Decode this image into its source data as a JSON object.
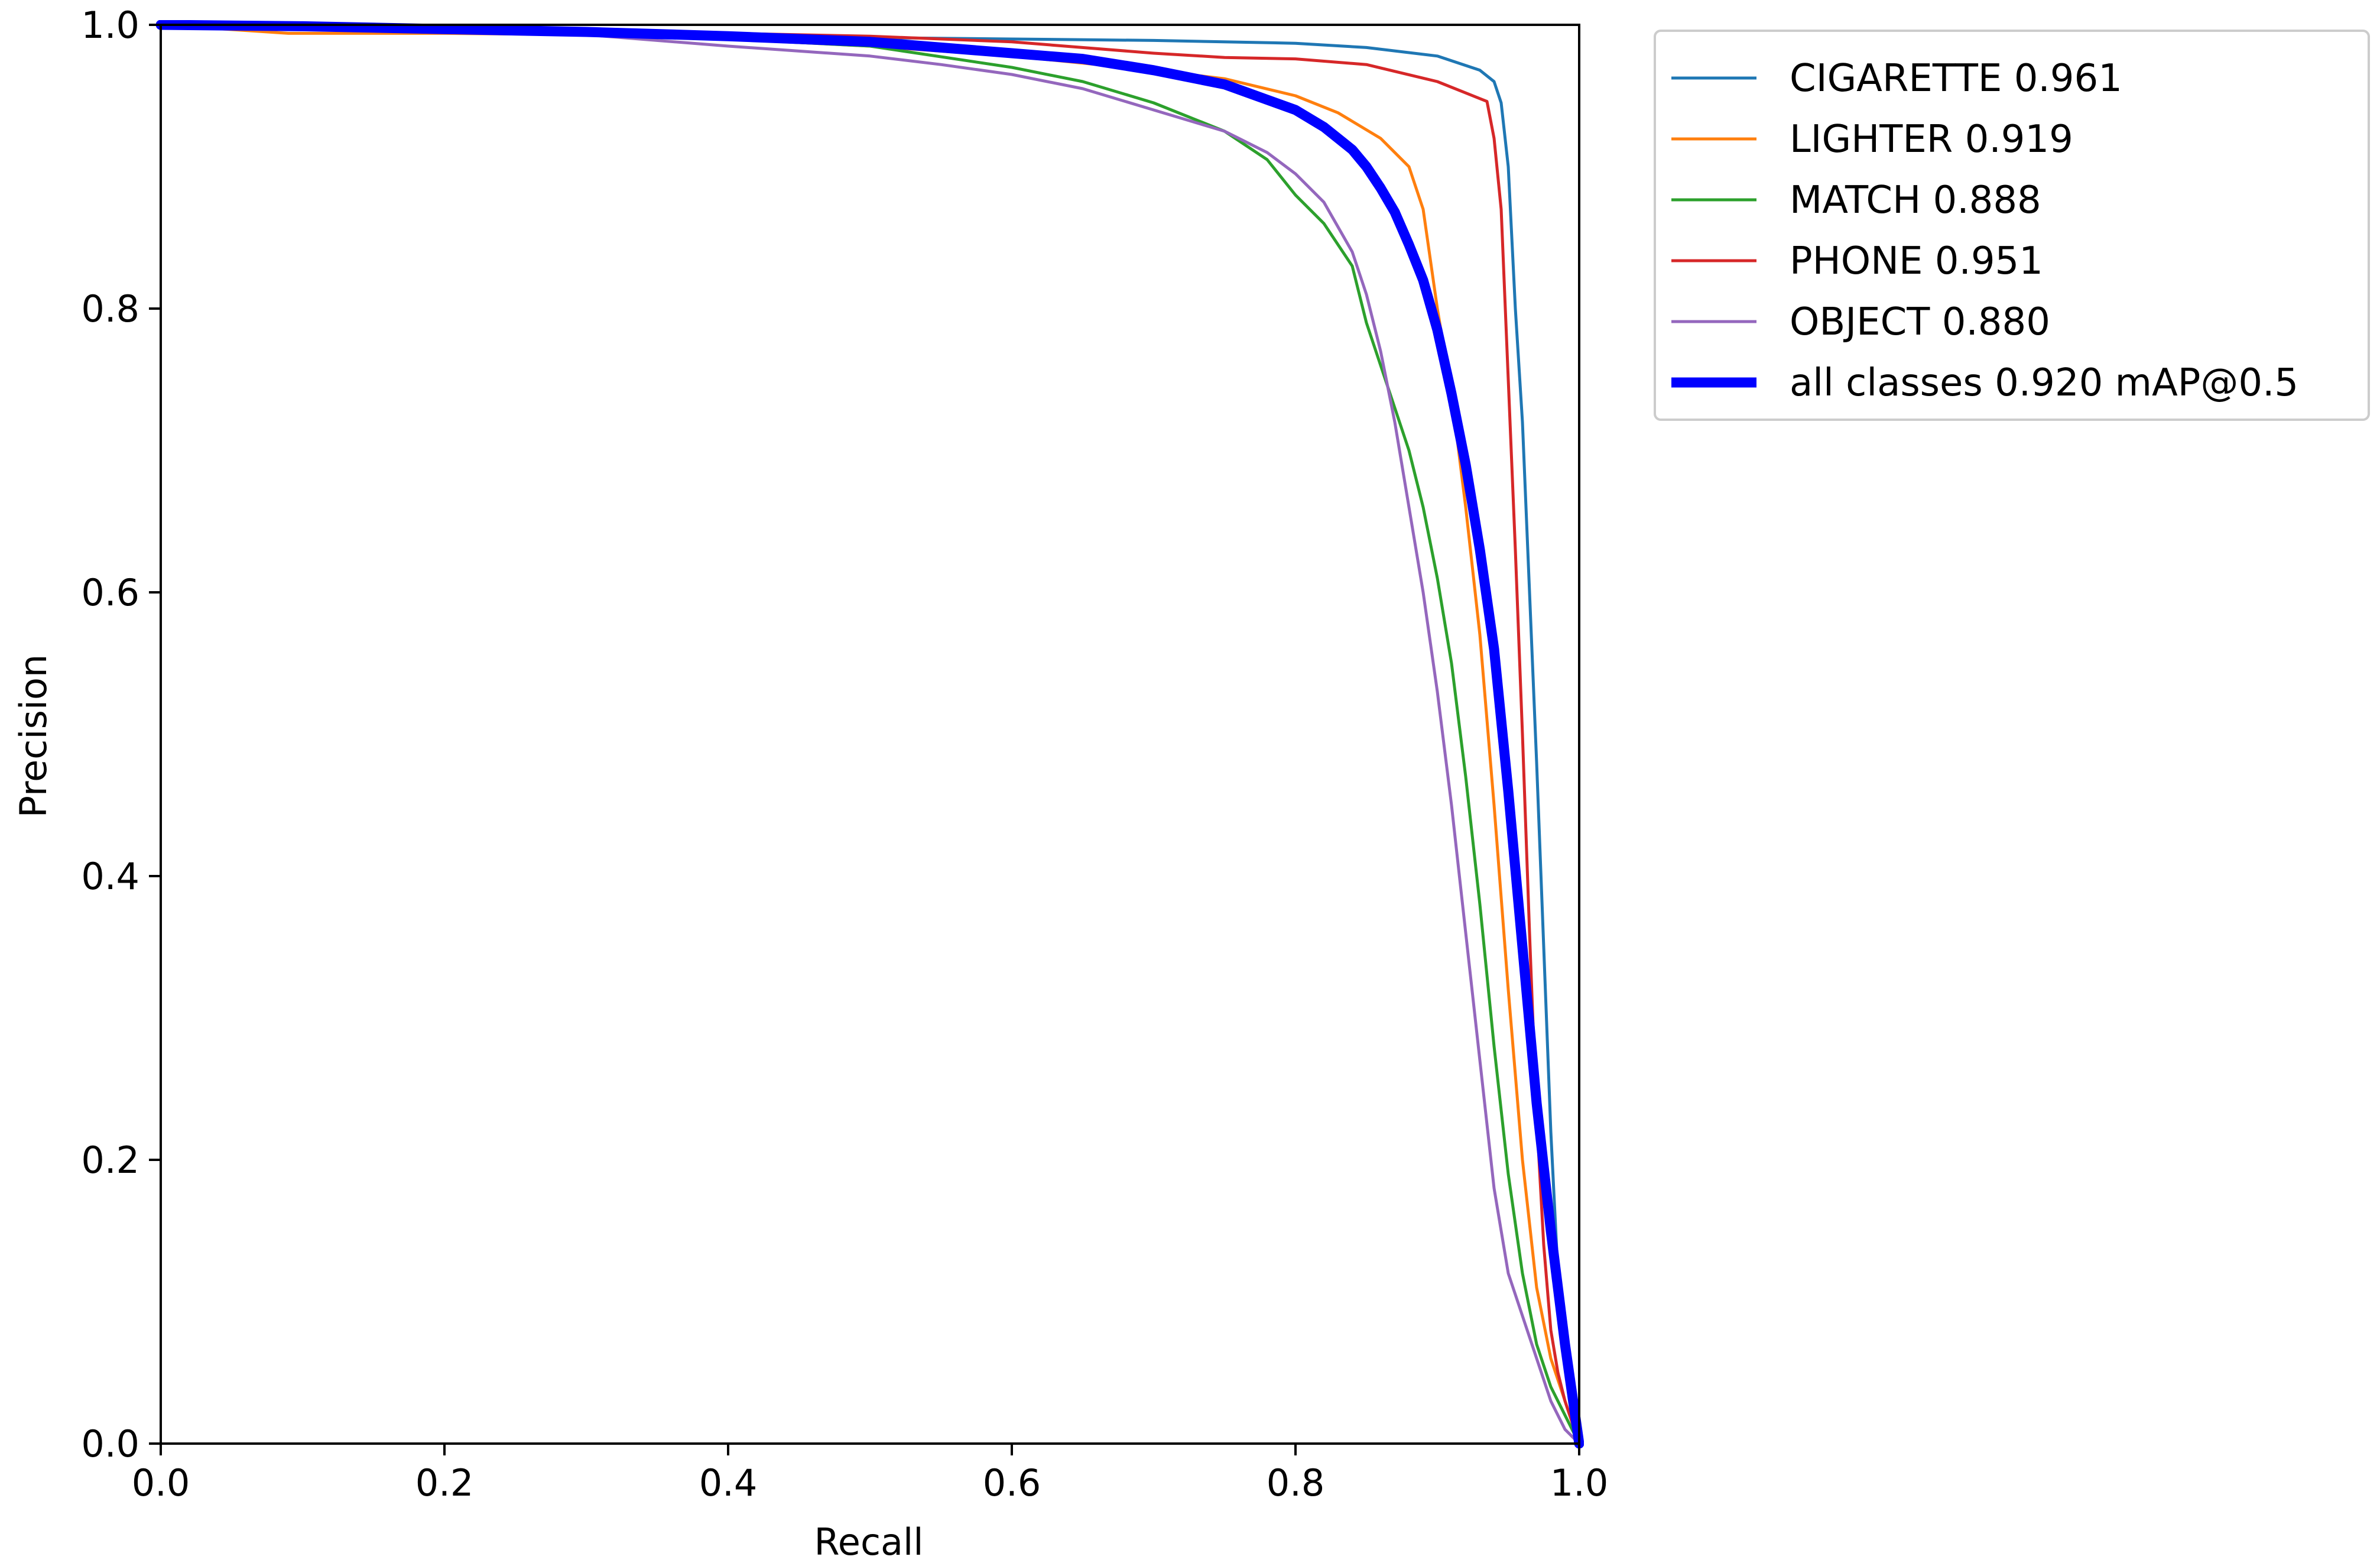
{
  "chart_data": {
    "type": "line",
    "title": "",
    "xlabel": "Recall",
    "ylabel": "Precision",
    "xlim": [
      0.0,
      1.0
    ],
    "ylim": [
      0.0,
      1.0
    ],
    "xticks": [
      "0.0",
      "0.2",
      "0.4",
      "0.6",
      "0.8",
      "1.0"
    ],
    "yticks": [
      "0.0",
      "0.2",
      "0.4",
      "0.6",
      "0.8",
      "1.0"
    ],
    "grid": false,
    "legend_position": "outside-top-right",
    "series": [
      {
        "name": "CIGARETTE 0.961",
        "color": "#1f77b4",
        "emphasis": false,
        "x": [
          0.0,
          0.1,
          0.2,
          0.3,
          0.4,
          0.5,
          0.6,
          0.7,
          0.8,
          0.85,
          0.9,
          0.93,
          0.94,
          0.945,
          0.95,
          0.955,
          0.96,
          0.965,
          0.97,
          0.975,
          0.98,
          0.985,
          0.99,
          0.995,
          1.0
        ],
        "y": [
          1.0,
          0.998,
          0.997,
          0.995,
          0.993,
          0.991,
          0.99,
          0.989,
          0.987,
          0.984,
          0.978,
          0.968,
          0.96,
          0.945,
          0.9,
          0.8,
          0.72,
          0.6,
          0.48,
          0.35,
          0.22,
          0.12,
          0.06,
          0.03,
          0.0
        ]
      },
      {
        "name": "LIGHTER 0.919",
        "color": "#ff7f0e",
        "emphasis": false,
        "x": [
          0.0,
          0.09,
          0.2,
          0.3,
          0.4,
          0.5,
          0.6,
          0.7,
          0.75,
          0.8,
          0.83,
          0.86,
          0.88,
          0.89,
          0.9,
          0.91,
          0.92,
          0.93,
          0.94,
          0.95,
          0.96,
          0.97,
          0.98,
          0.99,
          1.0
        ],
        "y": [
          1.0,
          0.994,
          0.994,
          0.993,
          0.99,
          0.985,
          0.978,
          0.968,
          0.962,
          0.95,
          0.938,
          0.92,
          0.9,
          0.87,
          0.8,
          0.74,
          0.66,
          0.57,
          0.45,
          0.32,
          0.2,
          0.11,
          0.06,
          0.03,
          0.0
        ]
      },
      {
        "name": "MATCH 0.888",
        "color": "#2ca02c",
        "emphasis": false,
        "x": [
          0.0,
          0.1,
          0.2,
          0.3,
          0.4,
          0.5,
          0.6,
          0.65,
          0.7,
          0.75,
          0.78,
          0.8,
          0.82,
          0.84,
          0.85,
          0.86,
          0.87,
          0.88,
          0.89,
          0.9,
          0.91,
          0.92,
          0.93,
          0.94,
          0.95,
          0.96,
          0.97,
          0.98,
          0.99,
          1.0
        ],
        "y": [
          1.0,
          0.999,
          0.998,
          0.995,
          0.99,
          0.985,
          0.97,
          0.96,
          0.945,
          0.925,
          0.905,
          0.88,
          0.86,
          0.83,
          0.79,
          0.76,
          0.73,
          0.7,
          0.66,
          0.61,
          0.55,
          0.47,
          0.38,
          0.28,
          0.19,
          0.12,
          0.07,
          0.04,
          0.02,
          0.0
        ]
      },
      {
        "name": "PHONE 0.951",
        "color": "#d62728",
        "emphasis": false,
        "x": [
          0.0,
          0.1,
          0.2,
          0.3,
          0.4,
          0.5,
          0.6,
          0.7,
          0.75,
          0.8,
          0.85,
          0.9,
          0.92,
          0.93,
          0.935,
          0.94,
          0.945,
          0.95,
          0.955,
          0.96,
          0.965,
          0.97,
          0.975,
          0.98,
          0.985,
          0.99,
          1.0
        ],
        "y": [
          1.0,
          0.999,
          0.998,
          0.996,
          0.994,
          0.992,
          0.988,
          0.98,
          0.977,
          0.976,
          0.972,
          0.96,
          0.952,
          0.948,
          0.946,
          0.92,
          0.87,
          0.75,
          0.63,
          0.5,
          0.36,
          0.23,
          0.14,
          0.08,
          0.05,
          0.03,
          0.0
        ]
      },
      {
        "name": "OBJECT 0.880",
        "color": "#9467bd",
        "emphasis": false,
        "x": [
          0.0,
          0.1,
          0.2,
          0.3,
          0.4,
          0.5,
          0.55,
          0.6,
          0.65,
          0.7,
          0.75,
          0.78,
          0.8,
          0.82,
          0.84,
          0.85,
          0.86,
          0.87,
          0.88,
          0.89,
          0.9,
          0.91,
          0.92,
          0.93,
          0.94,
          0.95,
          0.96,
          0.97,
          0.98,
          0.99,
          1.0
        ],
        "y": [
          1.0,
          0.999,
          0.997,
          0.993,
          0.985,
          0.978,
          0.972,
          0.965,
          0.955,
          0.94,
          0.925,
          0.91,
          0.895,
          0.875,
          0.84,
          0.81,
          0.77,
          0.72,
          0.66,
          0.6,
          0.53,
          0.45,
          0.36,
          0.27,
          0.18,
          0.12,
          0.09,
          0.06,
          0.03,
          0.01,
          0.0
        ]
      },
      {
        "name": "all classes 0.920 mAP@0.5",
        "color": "#0000ff",
        "emphasis": true,
        "x": [
          0.0,
          0.1,
          0.2,
          0.3,
          0.4,
          0.5,
          0.6,
          0.65,
          0.7,
          0.75,
          0.8,
          0.82,
          0.84,
          0.85,
          0.86,
          0.87,
          0.88,
          0.89,
          0.9,
          0.91,
          0.92,
          0.93,
          0.94,
          0.95,
          0.96,
          0.97,
          0.98,
          0.99,
          1.0
        ],
        "y": [
          1.0,
          0.999,
          0.997,
          0.995,
          0.992,
          0.988,
          0.98,
          0.976,
          0.968,
          0.958,
          0.94,
          0.928,
          0.912,
          0.9,
          0.885,
          0.868,
          0.845,
          0.82,
          0.785,
          0.74,
          0.69,
          0.63,
          0.56,
          0.46,
          0.35,
          0.24,
          0.15,
          0.07,
          0.0
        ]
      }
    ]
  }
}
